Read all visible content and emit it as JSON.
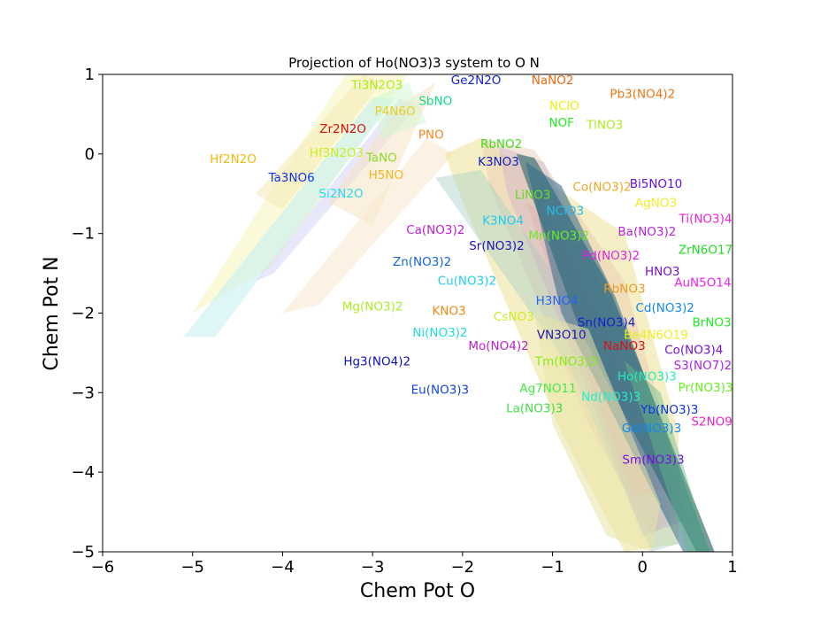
{
  "chart_data": {
    "type": "area",
    "title": "Projection of Ho(NO3)3 system to O N",
    "xlabel": "Chem Pot O",
    "ylabel": "Chem Pot N",
    "xlim": [
      -6,
      1
    ],
    "ylim": [
      -5,
      1
    ],
    "xticks": [
      -6,
      -5,
      -4,
      -3,
      -2,
      -1,
      0,
      1
    ],
    "yticks": [
      -5,
      -4,
      -3,
      -2,
      -1,
      0,
      1
    ],
    "xtick_labels": [
      "−6",
      "−5",
      "−4",
      "−3",
      "−2",
      "−1",
      "0",
      "1"
    ],
    "ytick_labels": [
      "−5",
      "−4",
      "−3",
      "−2",
      "−1",
      "0",
      "1"
    ],
    "grid": false,
    "regions": [
      {
        "color": "#f5f5b0",
        "opacity": 0.45,
        "points": [
          [
            -5.0,
            -2.0
          ],
          [
            -3.3,
            1.0
          ],
          [
            -2.6,
            1.0
          ],
          [
            -4.1,
            -1.4
          ]
        ]
      },
      {
        "color": "#c8f0f0",
        "opacity": 0.6,
        "points": [
          [
            -5.1,
            -2.3
          ],
          [
            -3.0,
            0.7
          ],
          [
            -2.75,
            0.7
          ],
          [
            -4.75,
            -2.3
          ]
        ]
      },
      {
        "color": "#d8d8f8",
        "opacity": 0.6,
        "points": [
          [
            -4.3,
            -1.6
          ],
          [
            -2.7,
            0.7
          ],
          [
            -2.5,
            0.6
          ],
          [
            -4.1,
            -1.5
          ]
        ]
      },
      {
        "color": "#f8e0c0",
        "opacity": 0.5,
        "points": [
          [
            -3.5,
            -0.6
          ],
          [
            -2.7,
            0.6
          ],
          [
            -2.3,
            0.9
          ],
          [
            -3.0,
            -0.9
          ]
        ]
      },
      {
        "color": "#f5e8b0",
        "opacity": 0.5,
        "points": [
          [
            -4.3,
            -0.5
          ],
          [
            -3.1,
            1.0
          ],
          [
            -2.9,
            0.9
          ],
          [
            -4.0,
            -0.7
          ]
        ]
      },
      {
        "color": "#d0f8d0",
        "opacity": 0.5,
        "points": [
          [
            -3.0,
            0.7
          ],
          [
            -2.6,
            0.9
          ],
          [
            -2.4,
            0.4
          ],
          [
            -2.9,
            0.2
          ]
        ]
      },
      {
        "color": "#f8ead0",
        "opacity": 0.6,
        "points": [
          [
            -4.0,
            -2.0
          ],
          [
            -2.4,
            0.2
          ],
          [
            -2.1,
            0.0
          ],
          [
            -3.6,
            -1.9
          ]
        ]
      },
      {
        "color": "#f0e4a0",
        "opacity": 0.6,
        "points": [
          [
            -2.2,
            0.0
          ],
          [
            -1.8,
            0.2
          ],
          [
            -0.2,
            -1.0
          ],
          [
            0.4,
            -3.5
          ],
          [
            0.4,
            -4.9
          ],
          [
            -0.2,
            -5.0
          ],
          [
            -0.9,
            -3.5
          ],
          [
            -2.0,
            -0.6
          ]
        ]
      },
      {
        "color": "#e8c8b0",
        "opacity": 0.45,
        "points": [
          [
            -1.8,
            0.2
          ],
          [
            -1.2,
            0.05
          ],
          [
            -0.2,
            -1.6
          ],
          [
            0.5,
            -4.4
          ],
          [
            0.1,
            -4.8
          ],
          [
            -0.6,
            -3.4
          ],
          [
            -1.7,
            -0.4
          ]
        ]
      },
      {
        "color": "#a8d0c8",
        "opacity": 0.45,
        "points": [
          [
            -2.3,
            -0.3
          ],
          [
            -1.8,
            -0.2
          ],
          [
            -0.5,
            -2.3
          ],
          [
            0.4,
            -4.9
          ],
          [
            0.1,
            -5.0
          ],
          [
            -0.8,
            -2.7
          ]
        ]
      },
      {
        "color": "#c8b0c8",
        "opacity": 0.4,
        "points": [
          [
            -1.6,
            0.1
          ],
          [
            -1.1,
            -0.1
          ],
          [
            -0.1,
            -2.5
          ],
          [
            0.5,
            -4.6
          ],
          [
            0.0,
            -4.8
          ],
          [
            -0.6,
            -3.0
          ],
          [
            -1.5,
            -0.5
          ]
        ]
      },
      {
        "color": "#e0a8b0",
        "opacity": 0.35,
        "points": [
          [
            -1.3,
            -0.6
          ],
          [
            -0.9,
            -0.9
          ],
          [
            -0.2,
            -2.7
          ],
          [
            0.3,
            -4.2
          ],
          [
            -0.1,
            -4.3
          ],
          [
            -0.8,
            -2.2
          ]
        ]
      },
      {
        "color": "#4a7a7a",
        "opacity": 0.75,
        "points": [
          [
            -1.4,
            0.0
          ],
          [
            -1.2,
            -0.05
          ],
          [
            -0.4,
            -1.6
          ],
          [
            0.8,
            -5.0
          ],
          [
            0.6,
            -5.0
          ],
          [
            -0.7,
            -2.2
          ]
        ]
      },
      {
        "color": "#2e6b8a",
        "opacity": 0.55,
        "points": [
          [
            -1.3,
            -0.1
          ],
          [
            -0.9,
            -0.4
          ],
          [
            -0.3,
            -1.8
          ],
          [
            0.75,
            -5.0
          ],
          [
            0.45,
            -5.0
          ],
          [
            -0.9,
            -2.0
          ]
        ]
      },
      {
        "color": "#66bb88",
        "opacity": 0.45,
        "points": [
          [
            -0.2,
            -2.6
          ],
          [
            0.2,
            -3.0
          ],
          [
            0.75,
            -5.0
          ],
          [
            0.5,
            -5.0
          ]
        ]
      },
      {
        "color": "#e8e4a8",
        "opacity": 0.55,
        "points": [
          [
            -1.2,
            -2.0
          ],
          [
            -0.6,
            -2.2
          ],
          [
            0.2,
            -4.4
          ],
          [
            0.1,
            -5.0
          ],
          [
            -0.4,
            -4.8
          ],
          [
            -1.0,
            -3.4
          ]
        ]
      }
    ],
    "annotations": [
      {
        "text": "Ti3N2O3",
        "x": -2.95,
        "y": 0.86,
        "color": "#aaee11"
      },
      {
        "text": "Ge2N2O",
        "x": -1.85,
        "y": 0.92,
        "color": "#1122cc"
      },
      {
        "text": "NaNO2",
        "x": -1.0,
        "y": 0.92,
        "color": "#ee6611"
      },
      {
        "text": "Pb3(NO4)2",
        "x": 0.0,
        "y": 0.75,
        "color": "#ee7711"
      },
      {
        "text": "SbNO",
        "x": -2.3,
        "y": 0.66,
        "color": "#11dd88"
      },
      {
        "text": "P4N6O",
        "x": -2.75,
        "y": 0.53,
        "color": "#eecc22"
      },
      {
        "text": "NClO",
        "x": -0.87,
        "y": 0.6,
        "color": "#eeee11"
      },
      {
        "text": "NOF",
        "x": -0.9,
        "y": 0.39,
        "color": "#22ee22"
      },
      {
        "text": "TlNO3",
        "x": -0.42,
        "y": 0.36,
        "color": "#aaee22"
      },
      {
        "text": "Zr2N2O",
        "x": -3.33,
        "y": 0.31,
        "color": "#dd1111"
      },
      {
        "text": "PNO",
        "x": -2.35,
        "y": 0.24,
        "color": "#ee8822"
      },
      {
        "text": "RbNO2",
        "x": -1.57,
        "y": 0.12,
        "color": "#44dd22"
      },
      {
        "text": "Hf2N2O",
        "x": -4.55,
        "y": -0.07,
        "color": "#eebb11"
      },
      {
        "text": "Hf3N2O3",
        "x": -3.4,
        "y": 0.01,
        "color": "#ccee22"
      },
      {
        "text": "TaNO",
        "x": -2.9,
        "y": -0.05,
        "color": "#88dd22"
      },
      {
        "text": "K3NO3",
        "x": -1.6,
        "y": -0.1,
        "color": "#1122bb"
      },
      {
        "text": "Ta3NO6",
        "x": -3.9,
        "y": -0.3,
        "color": "#1133ee"
      },
      {
        "text": "H5NO",
        "x": -2.85,
        "y": -0.27,
        "color": "#eebb22"
      },
      {
        "text": "Bi5NO10",
        "x": 0.15,
        "y": -0.38,
        "color": "#6611dd"
      },
      {
        "text": "Co(NO3)2",
        "x": -0.45,
        "y": -0.42,
        "color": "#eeaa22"
      },
      {
        "text": "LiNO3",
        "x": -1.22,
        "y": -0.52,
        "color": "#66dd22"
      },
      {
        "text": "Si2N2O",
        "x": -3.35,
        "y": -0.5,
        "color": "#22ddee"
      },
      {
        "text": "AgNO3",
        "x": 0.15,
        "y": -0.62,
        "color": "#eeee22"
      },
      {
        "text": "NClO3",
        "x": -0.86,
        "y": -0.72,
        "color": "#22bbee"
      },
      {
        "text": "Ti(NO3)4",
        "x": 0.7,
        "y": -0.82,
        "color": "#ee22dd"
      },
      {
        "text": "K3NO4",
        "x": -1.55,
        "y": -0.84,
        "color": "#22ccee"
      },
      {
        "text": "Ca(NO3)2",
        "x": -2.3,
        "y": -0.96,
        "color": "#bb22cc"
      },
      {
        "text": "Ba(NO3)2",
        "x": 0.05,
        "y": -0.98,
        "color": "#bb22dd"
      },
      {
        "text": "Mn(NO3)2",
        "x": -0.93,
        "y": -1.03,
        "color": "#66ee22"
      },
      {
        "text": "Sr(NO3)2",
        "x": -1.62,
        "y": -1.16,
        "color": "#2211bb"
      },
      {
        "text": "ZrN6O17",
        "x": 0.7,
        "y": -1.21,
        "color": "#22dd22"
      },
      {
        "text": "Pd(NO3)2",
        "x": -0.35,
        "y": -1.28,
        "color": "#dd22dd"
      },
      {
        "text": "Zn(NO3)2",
        "x": -2.45,
        "y": -1.36,
        "color": "#1166dd"
      },
      {
        "text": "HNO3",
        "x": 0.22,
        "y": -1.48,
        "color": "#7711cc"
      },
      {
        "text": "Cu(NO3)2",
        "x": -1.95,
        "y": -1.6,
        "color": "#22ccee"
      },
      {
        "text": "AuN5O14",
        "x": 0.67,
        "y": -1.62,
        "color": "#ee22ee"
      },
      {
        "text": "RbNO3",
        "x": -0.2,
        "y": -1.7,
        "color": "#ee9922"
      },
      {
        "text": "H3NO4",
        "x": -0.95,
        "y": -1.85,
        "color": "#2266ee"
      },
      {
        "text": "Mg(NO3)2",
        "x": -3.0,
        "y": -1.92,
        "color": "#aaee22"
      },
      {
        "text": "Cd(NO3)2",
        "x": 0.25,
        "y": -1.94,
        "color": "#1188ee"
      },
      {
        "text": "KNO3",
        "x": -2.15,
        "y": -1.98,
        "color": "#ee8811"
      },
      {
        "text": "CsNO3",
        "x": -1.43,
        "y": -2.05,
        "color": "#ccee22"
      },
      {
        "text": "Sn(NO3)4",
        "x": -0.4,
        "y": -2.12,
        "color": "#1122cc"
      },
      {
        "text": "BrNO3",
        "x": 0.77,
        "y": -2.12,
        "color": "#22ee22"
      },
      {
        "text": "Ni(NO3)2",
        "x": -2.25,
        "y": -2.25,
        "color": "#22dddd"
      },
      {
        "text": "VN3O10",
        "x": -0.9,
        "y": -2.28,
        "color": "#2211bb"
      },
      {
        "text": "Be4N6O19",
        "x": 0.15,
        "y": -2.28,
        "color": "#eeee22"
      },
      {
        "text": "NaNO3",
        "x": -0.2,
        "y": -2.42,
        "color": "#dd1111"
      },
      {
        "text": "Mo(NO4)2",
        "x": -1.6,
        "y": -2.42,
        "color": "#bb22cc"
      },
      {
        "text": "Co(NO3)4",
        "x": 0.57,
        "y": -2.47,
        "color": "#7711dd"
      },
      {
        "text": "Hg3(NO4)2",
        "x": -2.95,
        "y": -2.61,
        "color": "#1111bb"
      },
      {
        "text": "Tm(NO3)3",
        "x": -0.85,
        "y": -2.61,
        "color": "#88ee11"
      },
      {
        "text": "S3(NO7)2",
        "x": 0.67,
        "y": -2.66,
        "color": "#aa22ee"
      },
      {
        "text": "Ho(NO3)3",
        "x": 0.05,
        "y": -2.8,
        "color": "#22eebb"
      },
      {
        "text": "Ag7NO11",
        "x": -1.05,
        "y": -2.95,
        "color": "#44ee44"
      },
      {
        "text": "Pr(NO3)3",
        "x": 0.7,
        "y": -2.94,
        "color": "#66ee22"
      },
      {
        "text": "Eu(NO3)3",
        "x": -2.25,
        "y": -2.97,
        "color": "#1144dd"
      },
      {
        "text": "Nd(NO3)3",
        "x": -0.35,
        "y": -3.06,
        "color": "#22eecc"
      },
      {
        "text": "La(NO3)3",
        "x": -1.2,
        "y": -3.2,
        "color": "#44dd44"
      },
      {
        "text": "Yb(NO3)3",
        "x": 0.3,
        "y": -3.22,
        "color": "#1133ee"
      },
      {
        "text": "S2NO9",
        "x": 0.77,
        "y": -3.37,
        "color": "#ee22cc"
      },
      {
        "text": "Gd(NO3)3",
        "x": 0.1,
        "y": -3.45,
        "color": "#1188ee"
      },
      {
        "text": "Sm(NO3)3",
        "x": 0.12,
        "y": -3.85,
        "color": "#7711dd"
      }
    ]
  }
}
